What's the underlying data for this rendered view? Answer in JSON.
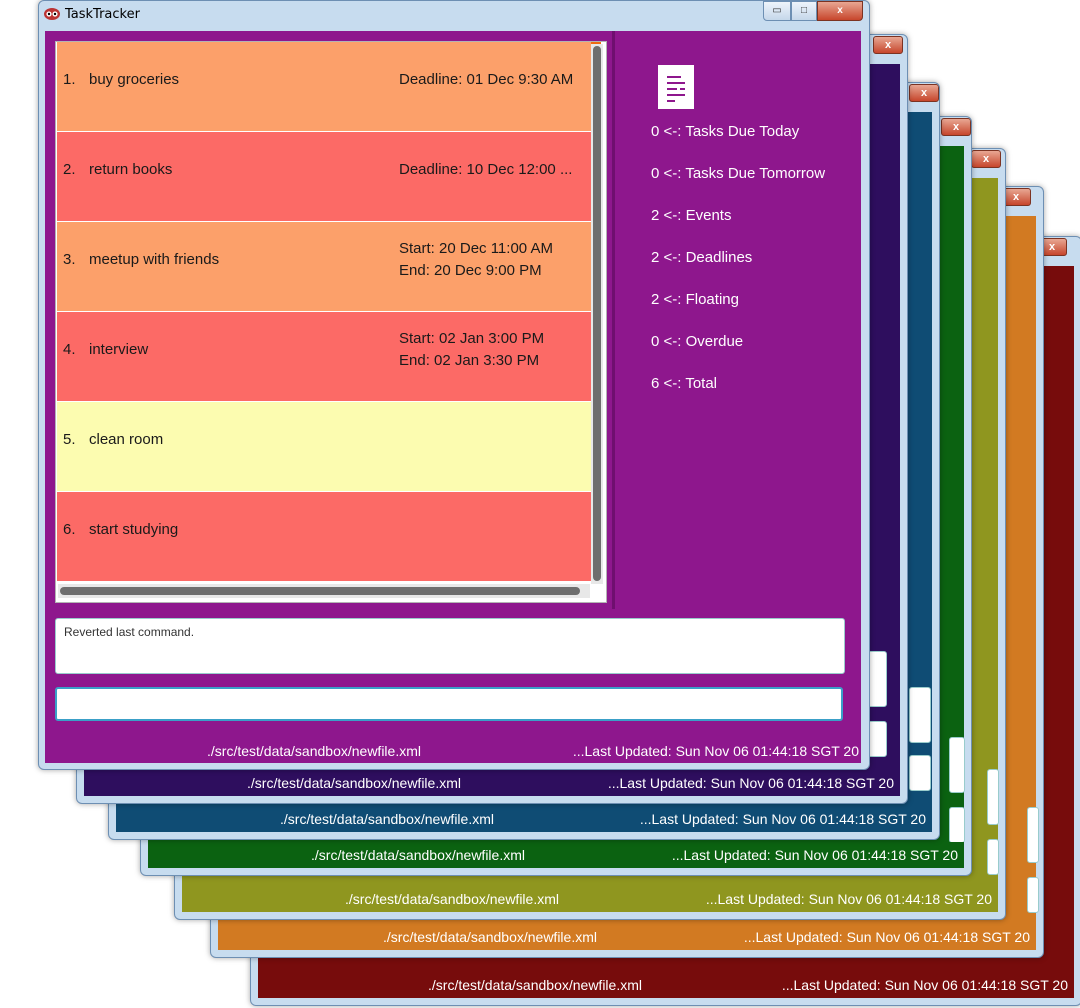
{
  "window": {
    "title": "TaskTracker",
    "minimize": "▭",
    "maximize": "□",
    "close": "x"
  },
  "tasks": [
    {
      "num": "1.",
      "name": "buy groceries",
      "line1": "Deadline: 01 Dec 9:30 AM",
      "line2": "",
      "bg": "#fca06a",
      "stripe": "#ef6b12"
    },
    {
      "num": "2.",
      "name": "return books",
      "line1": "Deadline: 10 Dec 12:00 ...",
      "line2": "",
      "bg": "#fc6a66",
      "stripe": "#ee0a0a"
    },
    {
      "num": "3.",
      "name": "meetup with friends",
      "line1": "Start: 20 Dec 11:00 AM",
      "line2": "End: 20 Dec 9:00 PM",
      "bg": "#fca06a",
      "stripe": "#ef6b12"
    },
    {
      "num": "4.",
      "name": "interview",
      "line1": "Start: 02 Jan 3:00 PM",
      "line2": "End: 02 Jan 3:30 PM",
      "bg": "#fc6a66",
      "stripe": "#ee0a0a"
    },
    {
      "num": "5.",
      "name": "clean room",
      "line1": "",
      "line2": "",
      "bg": "#fcfcb0",
      "stripe": "#8bbd2a"
    },
    {
      "num": "6.",
      "name": "start studying",
      "line1": "",
      "line2": "",
      "bg": "#fc6a66",
      "stripe": "#ee0a0a"
    }
  ],
  "stats": [
    "0 <-: Tasks Due Today",
    "0 <-: Tasks Due Tomorrow",
    "2 <-: Events",
    "2 <-: Deadlines",
    "2 <-: Floating",
    "0 <-: Overdue",
    "6 <-: Total"
  ],
  "result_text": "Reverted last command.",
  "command_input": {
    "value": "",
    "placeholder": ""
  },
  "status": {
    "path": "./src/test/data/sandbox/newfile.xml",
    "updated": "...Last Updated: Sun Nov 06 01:44:18 SGT 20"
  },
  "theme_colors": {
    "main": "#8e178d",
    "stack": [
      "#2e0e5e",
      "#0f4c74",
      "#0b6211",
      "#8f961f",
      "#d27a22",
      "#770c0c"
    ]
  },
  "close_label": "x"
}
